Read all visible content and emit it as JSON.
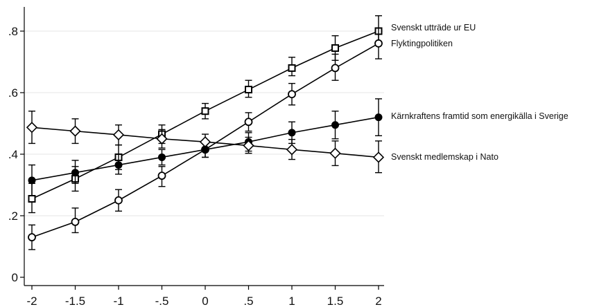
{
  "chart_data": {
    "type": "line",
    "title": "",
    "xlabel": "",
    "ylabel": "",
    "xlim": [
      -2,
      2
    ],
    "ylim": [
      0,
      0.8
    ],
    "x": [
      -2,
      -1.5,
      -1,
      -0.5,
      0,
      0.5,
      1,
      1.5,
      2
    ],
    "x_tick_labels": [
      "-2",
      "-1.5",
      "-1",
      "-.5",
      "0",
      ".5",
      "1",
      "1.5",
      "2"
    ],
    "y_ticks": [
      0,
      0.2,
      0.4,
      0.6,
      0.8
    ],
    "y_tick_labels": [
      "0",
      ".2",
      ".4",
      ".6",
      ".8"
    ],
    "grid": true,
    "legend": "direct labels at right end of each line",
    "series": [
      {
        "name": "Svenskt utträde ur EU",
        "marker": "hollow-square",
        "values": [
          0.255,
          0.32,
          0.39,
          0.465,
          0.54,
          0.61,
          0.68,
          0.745,
          0.8
        ],
        "ci_low": [
          0.21,
          0.28,
          0.35,
          0.435,
          0.515,
          0.585,
          0.655,
          0.705,
          0.76
        ],
        "ci_high": [
          0.305,
          0.36,
          0.43,
          0.495,
          0.565,
          0.64,
          0.715,
          0.785,
          0.85
        ]
      },
      {
        "name": "Flyktingpolitiken",
        "marker": "hollow-circle",
        "values": [
          0.13,
          0.18,
          0.25,
          0.33,
          0.415,
          0.505,
          0.595,
          0.68,
          0.76
        ],
        "ci_low": [
          0.09,
          0.145,
          0.215,
          0.295,
          0.39,
          0.475,
          0.56,
          0.64,
          0.71
        ],
        "ci_high": [
          0.17,
          0.225,
          0.285,
          0.36,
          0.445,
          0.535,
          0.63,
          0.725,
          0.81
        ]
      },
      {
        "name": "Kärnkraftens framtid som energikälla i Sverige",
        "marker": "filled-circle",
        "values": [
          0.315,
          0.34,
          0.365,
          0.39,
          0.415,
          0.44,
          0.47,
          0.495,
          0.52
        ],
        "ci_low": [
          0.265,
          0.305,
          0.335,
          0.365,
          0.39,
          0.41,
          0.435,
          0.45,
          0.46
        ],
        "ci_high": [
          0.365,
          0.38,
          0.4,
          0.415,
          0.44,
          0.47,
          0.505,
          0.54,
          0.58
        ]
      },
      {
        "name": "Svenskt medlemskap i Nato",
        "marker": "hollow-diamond",
        "values": [
          0.487,
          0.475,
          0.463,
          0.45,
          0.44,
          0.428,
          0.415,
          0.403,
          0.39
        ],
        "ci_low": [
          0.435,
          0.435,
          0.43,
          0.42,
          0.415,
          0.403,
          0.383,
          0.363,
          0.34
        ],
        "ci_high": [
          0.54,
          0.515,
          0.495,
          0.48,
          0.465,
          0.455,
          0.448,
          0.443,
          0.443
        ]
      }
    ]
  }
}
